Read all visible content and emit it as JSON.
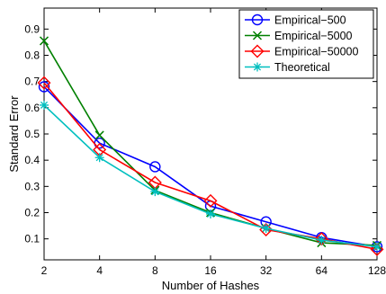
{
  "chart_data": {
    "type": "line",
    "xscale": "log2",
    "x": [
      2,
      4,
      8,
      16,
      32,
      64,
      128
    ],
    "x_tick_labels": [
      "2",
      "4",
      "8",
      "16",
      "32",
      "64",
      "128"
    ],
    "y_tick_labels": [
      "0.1",
      "0.2",
      "0.3",
      "0.4",
      "0.5",
      "0.6",
      "0.7",
      "0.8",
      "0.9"
    ],
    "y_ticks": [
      0.1,
      0.2,
      0.3,
      0.4,
      0.5,
      0.6,
      0.7,
      0.8,
      0.9
    ],
    "xlabel": "Number of Hashes",
    "ylabel": "Standard Error",
    "xlim": [
      2,
      128
    ],
    "ylim": [
      0.02,
      0.98
    ],
    "grid": false,
    "legend_position": "top-right",
    "series": [
      {
        "name": "Empirical−500",
        "color": "#0000ff",
        "marker": "circle",
        "values": [
          0.68,
          0.465,
          0.375,
          0.225,
          0.165,
          0.105,
          0.07
        ]
      },
      {
        "name": "Empirical−5000",
        "color": "#008000",
        "marker": "x",
        "values": [
          0.855,
          0.495,
          0.285,
          0.2,
          0.14,
          0.085,
          0.075
        ]
      },
      {
        "name": "Empirical−50000",
        "color": "#ff0000",
        "marker": "diamond",
        "values": [
          0.695,
          0.44,
          0.315,
          0.245,
          0.135,
          0.1,
          0.06
        ]
      },
      {
        "name": "Theoretical",
        "color": "#00bfbf",
        "marker": "star",
        "values": [
          0.61,
          0.41,
          0.28,
          0.195,
          0.14,
          0.095,
          0.07
        ]
      }
    ]
  }
}
